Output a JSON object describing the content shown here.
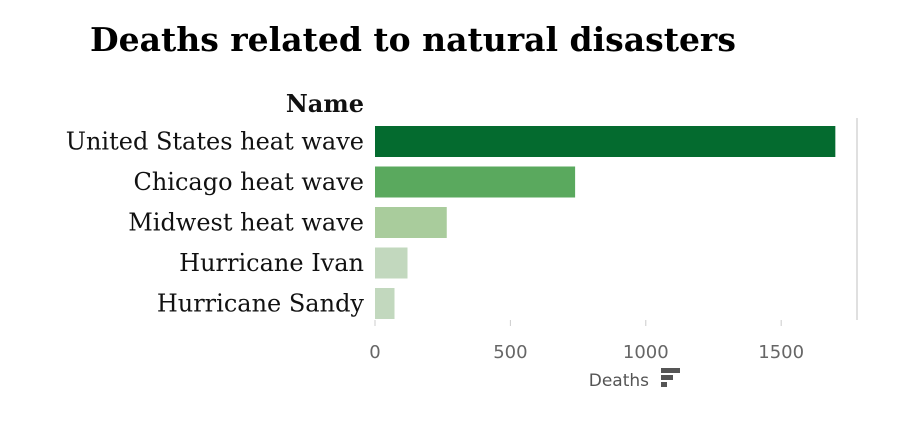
{
  "chart_data": {
    "type": "bar",
    "orientation": "horizontal",
    "title": "Deaths related to natural disasters",
    "ylabel": "Name",
    "xlabel": "Deaths",
    "xlim": [
      0,
      1780
    ],
    "xticks": [
      0,
      500,
      1000,
      1500
    ],
    "categories": [
      "United States heat wave",
      "Chicago heat wave",
      "Midwest heat wave",
      "Hurricane Ivan",
      "Hurricane Sandy"
    ],
    "values": [
      1700,
      739,
      265,
      120,
      72
    ],
    "bar_colors": [
      "#046b2f",
      "#5aa95e",
      "#a9cc9c",
      "#c2d8be",
      "#c2d8be"
    ],
    "sort_icon": "sort-descending-icon"
  }
}
